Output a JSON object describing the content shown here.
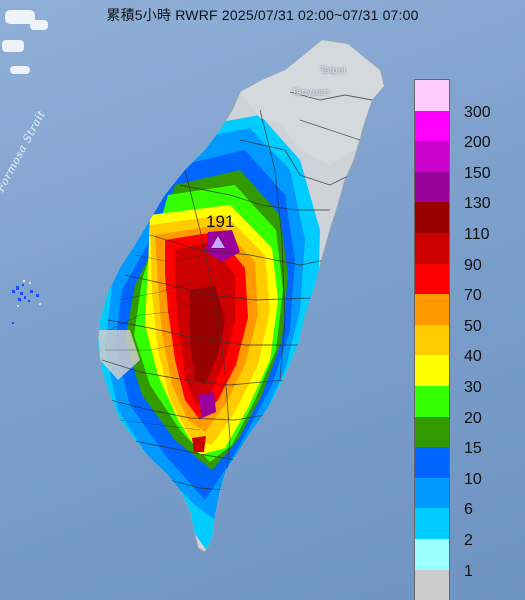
{
  "title": "累積5小時 RWRF 2025/07/31 02:00~07/31 07:00",
  "places": {
    "taipei": "Taipei",
    "taoyuan": "Taoyuan",
    "strait": "Formosa Strait"
  },
  "max_marker": {
    "value": "191"
  },
  "legend": {
    "items": [
      {
        "label": "300",
        "color": "#ffccff"
      },
      {
        "label": "200",
        "color": "#ff00ff"
      },
      {
        "label": "150",
        "color": "#cc00cc"
      },
      {
        "label": "130",
        "color": "#990099"
      },
      {
        "label": "110",
        "color": "#990000"
      },
      {
        "label": "90",
        "color": "#cc0000"
      },
      {
        "label": "70",
        "color": "#ff0000"
      },
      {
        "label": "50",
        "color": "#ff9900"
      },
      {
        "label": "40",
        "color": "#ffcc00"
      },
      {
        "label": "30",
        "color": "#ffff00"
      },
      {
        "label": "20",
        "color": "#33ff00"
      },
      {
        "label": "15",
        "color": "#339900"
      },
      {
        "label": "10",
        "color": "#0066ff"
      },
      {
        "label": "6",
        "color": "#0099ff"
      },
      {
        "label": "2",
        "color": "#00ccff"
      },
      {
        "label": "1",
        "color": "#99ffff"
      },
      {
        "label": "",
        "color": "#cccccc"
      }
    ]
  },
  "colors": {
    "sea": "#7da0cc",
    "land": "#cfd5da",
    "county_border": "#333333"
  }
}
